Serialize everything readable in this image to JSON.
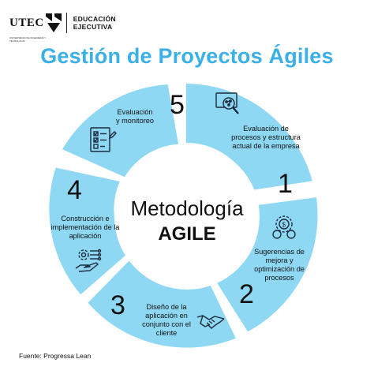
{
  "header": {
    "logo": "UTEC",
    "logo_small": "UNIVERSIDAD DE INGENIERÍA Y TECNOLOGÍA",
    "line1": "EDUCACIÓN",
    "line2": "EJECUTIVA"
  },
  "title": "Gestión de Proyectos Ágiles",
  "colors": {
    "accent": "#3ab0e6",
    "ring": "#8fd8f4",
    "center": "#ffffff",
    "text": "#111111"
  },
  "center": {
    "line1": "Metodología",
    "line2": "AGILE"
  },
  "steps": [
    {
      "number": "1",
      "label": "Evaluación de procesos y estructura actual de la empresa",
      "icon": "magnifier-network-icon"
    },
    {
      "number": "2",
      "label": "Sugerencias de mejora y optimización de procesos",
      "icon": "gear-coins-icon"
    },
    {
      "number": "3",
      "label": "Diseño de la aplicación en conjunto con el cliente",
      "icon": "handshake-icon"
    },
    {
      "number": "4",
      "label": "Construcción e implementación de la aplicación",
      "icon": "gear-hand-icon"
    },
    {
      "number": "5",
      "label": "Evaluación y monitoreo",
      "icon": "checklist-icon"
    }
  ],
  "source": "Fuente: Progressa Lean"
}
